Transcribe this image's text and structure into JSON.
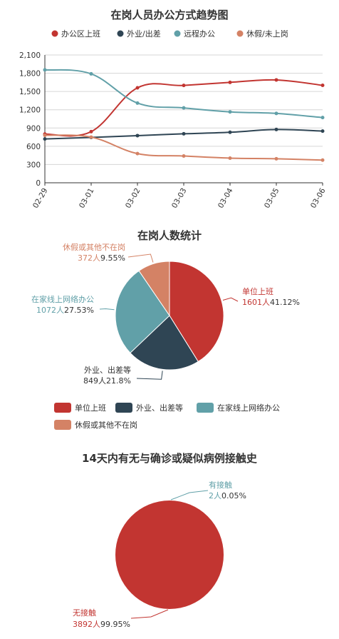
{
  "colors": {
    "office": "#c23531",
    "field": "#2f4554",
    "remote": "#61a0a8",
    "leave": "#d48265",
    "axis": "#333333",
    "grid": "#cccccc"
  },
  "chart_data": [
    {
      "type": "line",
      "title": "在岗人员办公方式趋势图",
      "x": [
        "02-29",
        "03-01",
        "03-02",
        "03-03",
        "03-04",
        "03-05",
        "03-06"
      ],
      "y_ticks": [
        "0",
        "300",
        "600",
        "900",
        "1,200",
        "1,500",
        "1,800",
        "2,100"
      ],
      "ylim": [
        0,
        2100
      ],
      "grid": true,
      "legend_position": "top",
      "series": [
        {
          "name": "办公区上班",
          "color": "#c23531",
          "values": [
            800,
            840,
            1560,
            1600,
            1650,
            1690,
            1601
          ]
        },
        {
          "name": "外业/出差",
          "color": "#2f4554",
          "values": [
            720,
            745,
            775,
            805,
            830,
            875,
            849
          ]
        },
        {
          "name": "远程办公",
          "color": "#61a0a8",
          "values": [
            1855,
            1790,
            1310,
            1230,
            1165,
            1140,
            1072
          ]
        },
        {
          "name": "休假/未上岗",
          "color": "#d48265",
          "values": [
            780,
            750,
            480,
            440,
            405,
            395,
            372
          ]
        }
      ]
    },
    {
      "type": "pie",
      "title": "在岗人数统计",
      "legend_position": "bottom",
      "slices": [
        {
          "name": "单位上班",
          "value": 1601,
          "value_label": "1601人",
          "pct": "41.12%",
          "color": "#c23531"
        },
        {
          "name": "外业、出差等",
          "value": 849,
          "value_label": "849人",
          "pct": "21.8%",
          "color": "#2f4554"
        },
        {
          "name": "在家线上网络办公",
          "value": 1072,
          "value_label": "1072人",
          "pct": "27.53%",
          "color": "#61a0a8"
        },
        {
          "name": "休假或其他不在岗",
          "value": 372,
          "value_label": "372人",
          "pct": "9.55%",
          "color": "#d48265"
        }
      ]
    },
    {
      "type": "pie",
      "title": "14天内有无与确诊或疑似病例接触史",
      "slices": [
        {
          "name": "有接触",
          "value": 2,
          "value_label": "2人",
          "pct": "0.05%",
          "color": "#61a0a8"
        },
        {
          "name": "无接触",
          "value": 3892,
          "value_label": "3892人",
          "pct": "99.95%",
          "color": "#c23531"
        }
      ]
    }
  ]
}
